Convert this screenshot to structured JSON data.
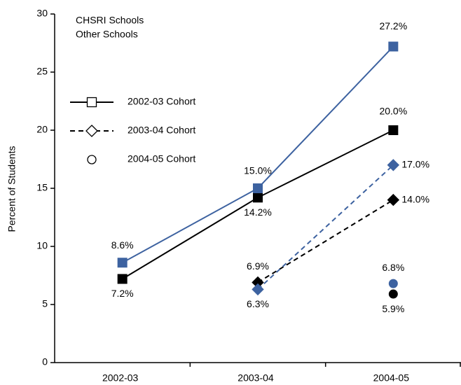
{
  "chart_data": {
    "type": "line",
    "categories": [
      "2002-03",
      "2003-04",
      "2004-05"
    ],
    "ylabel": "Percent of Students",
    "ylim": [
      0,
      30
    ],
    "yticks": [
      0,
      5,
      10,
      15,
      20,
      25,
      30
    ],
    "groups": [
      {
        "name": "CHSRI Schools",
        "color": "#000000"
      },
      {
        "name": "Other Schools",
        "color": "#3d62a0"
      }
    ],
    "cohorts": [
      {
        "name": "2002-03 Cohort",
        "marker": "square",
        "line": "solid",
        "series": [
          {
            "values": [
              7.2,
              14.2,
              20.0
            ],
            "value_labels": [
              "7.2%",
              "14.2%",
              "20.0%"
            ]
          },
          {
            "values": [
              8.6,
              15.0,
              27.2
            ],
            "value_labels": [
              "8.6%",
              "15.0%",
              "27.2%"
            ]
          }
        ]
      },
      {
        "name": "2003-04 Cohort",
        "marker": "diamond",
        "line": "dashed",
        "series": [
          {
            "values": [
              null,
              6.9,
              14.0
            ],
            "value_labels": [
              null,
              "6.9%",
              "14.0%"
            ]
          },
          {
            "values": [
              null,
              6.3,
              17.0
            ],
            "value_labels": [
              null,
              "6.3%",
              "17.0%"
            ]
          }
        ]
      },
      {
        "name": "2004-05 Cohort",
        "marker": "circle",
        "line": "none",
        "series": [
          {
            "values": [
              null,
              null,
              5.9
            ],
            "value_labels": [
              null,
              null,
              "5.9%"
            ]
          },
          {
            "values": [
              null,
              null,
              6.8
            ],
            "value_labels": [
              null,
              null,
              "6.8%"
            ]
          }
        ]
      }
    ]
  }
}
